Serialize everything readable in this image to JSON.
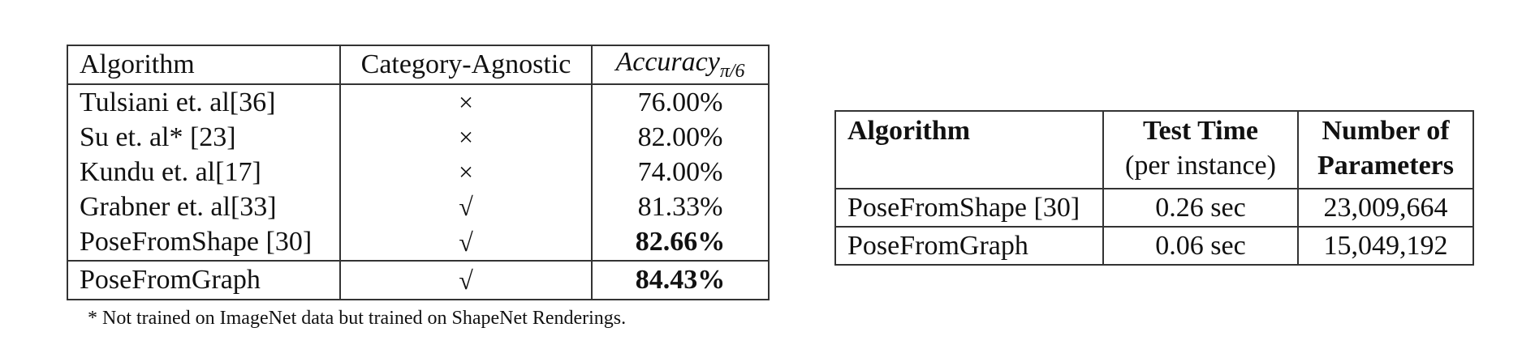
{
  "left_table": {
    "headers": {
      "algorithm": "Algorithm",
      "category_agnostic": "Category-Agnostic",
      "accuracy_main": "Accuracy",
      "accuracy_sub": "π/6"
    },
    "rows": [
      {
        "algorithm": "Tulsiani et. al[36]",
        "category_agnostic": "×",
        "accuracy": "76.00%"
      },
      {
        "algorithm": "Su et. al* [23]",
        "category_agnostic": "×",
        "accuracy": "82.00%"
      },
      {
        "algorithm": "Kundu et. al[17]",
        "category_agnostic": "×",
        "accuracy": "74.00%"
      },
      {
        "algorithm": "Grabner et. al[33]",
        "category_agnostic": "√",
        "accuracy": "81.33%"
      },
      {
        "algorithm": "PoseFromShape [30]",
        "category_agnostic": "√",
        "accuracy": "82.66%"
      }
    ],
    "final_row": {
      "algorithm": "PoseFromGraph",
      "category_agnostic": "√",
      "accuracy": "84.43%"
    },
    "footnote": "* Not trained on ImageNet data but trained on ShapeNet Renderings."
  },
  "right_table": {
    "headers": {
      "algorithm": "Algorithm",
      "test_time_line1": "Test Time",
      "test_time_line2": "(per instance)",
      "params_line1": "Number of",
      "params_line2": "Parameters"
    },
    "rows": [
      {
        "algorithm": "PoseFromShape [30]",
        "test_time": "0.26 sec",
        "parameters": "23,009,664"
      },
      {
        "algorithm": "PoseFromGraph",
        "test_time": "0.06 sec",
        "parameters": "15,049,192"
      }
    ]
  }
}
